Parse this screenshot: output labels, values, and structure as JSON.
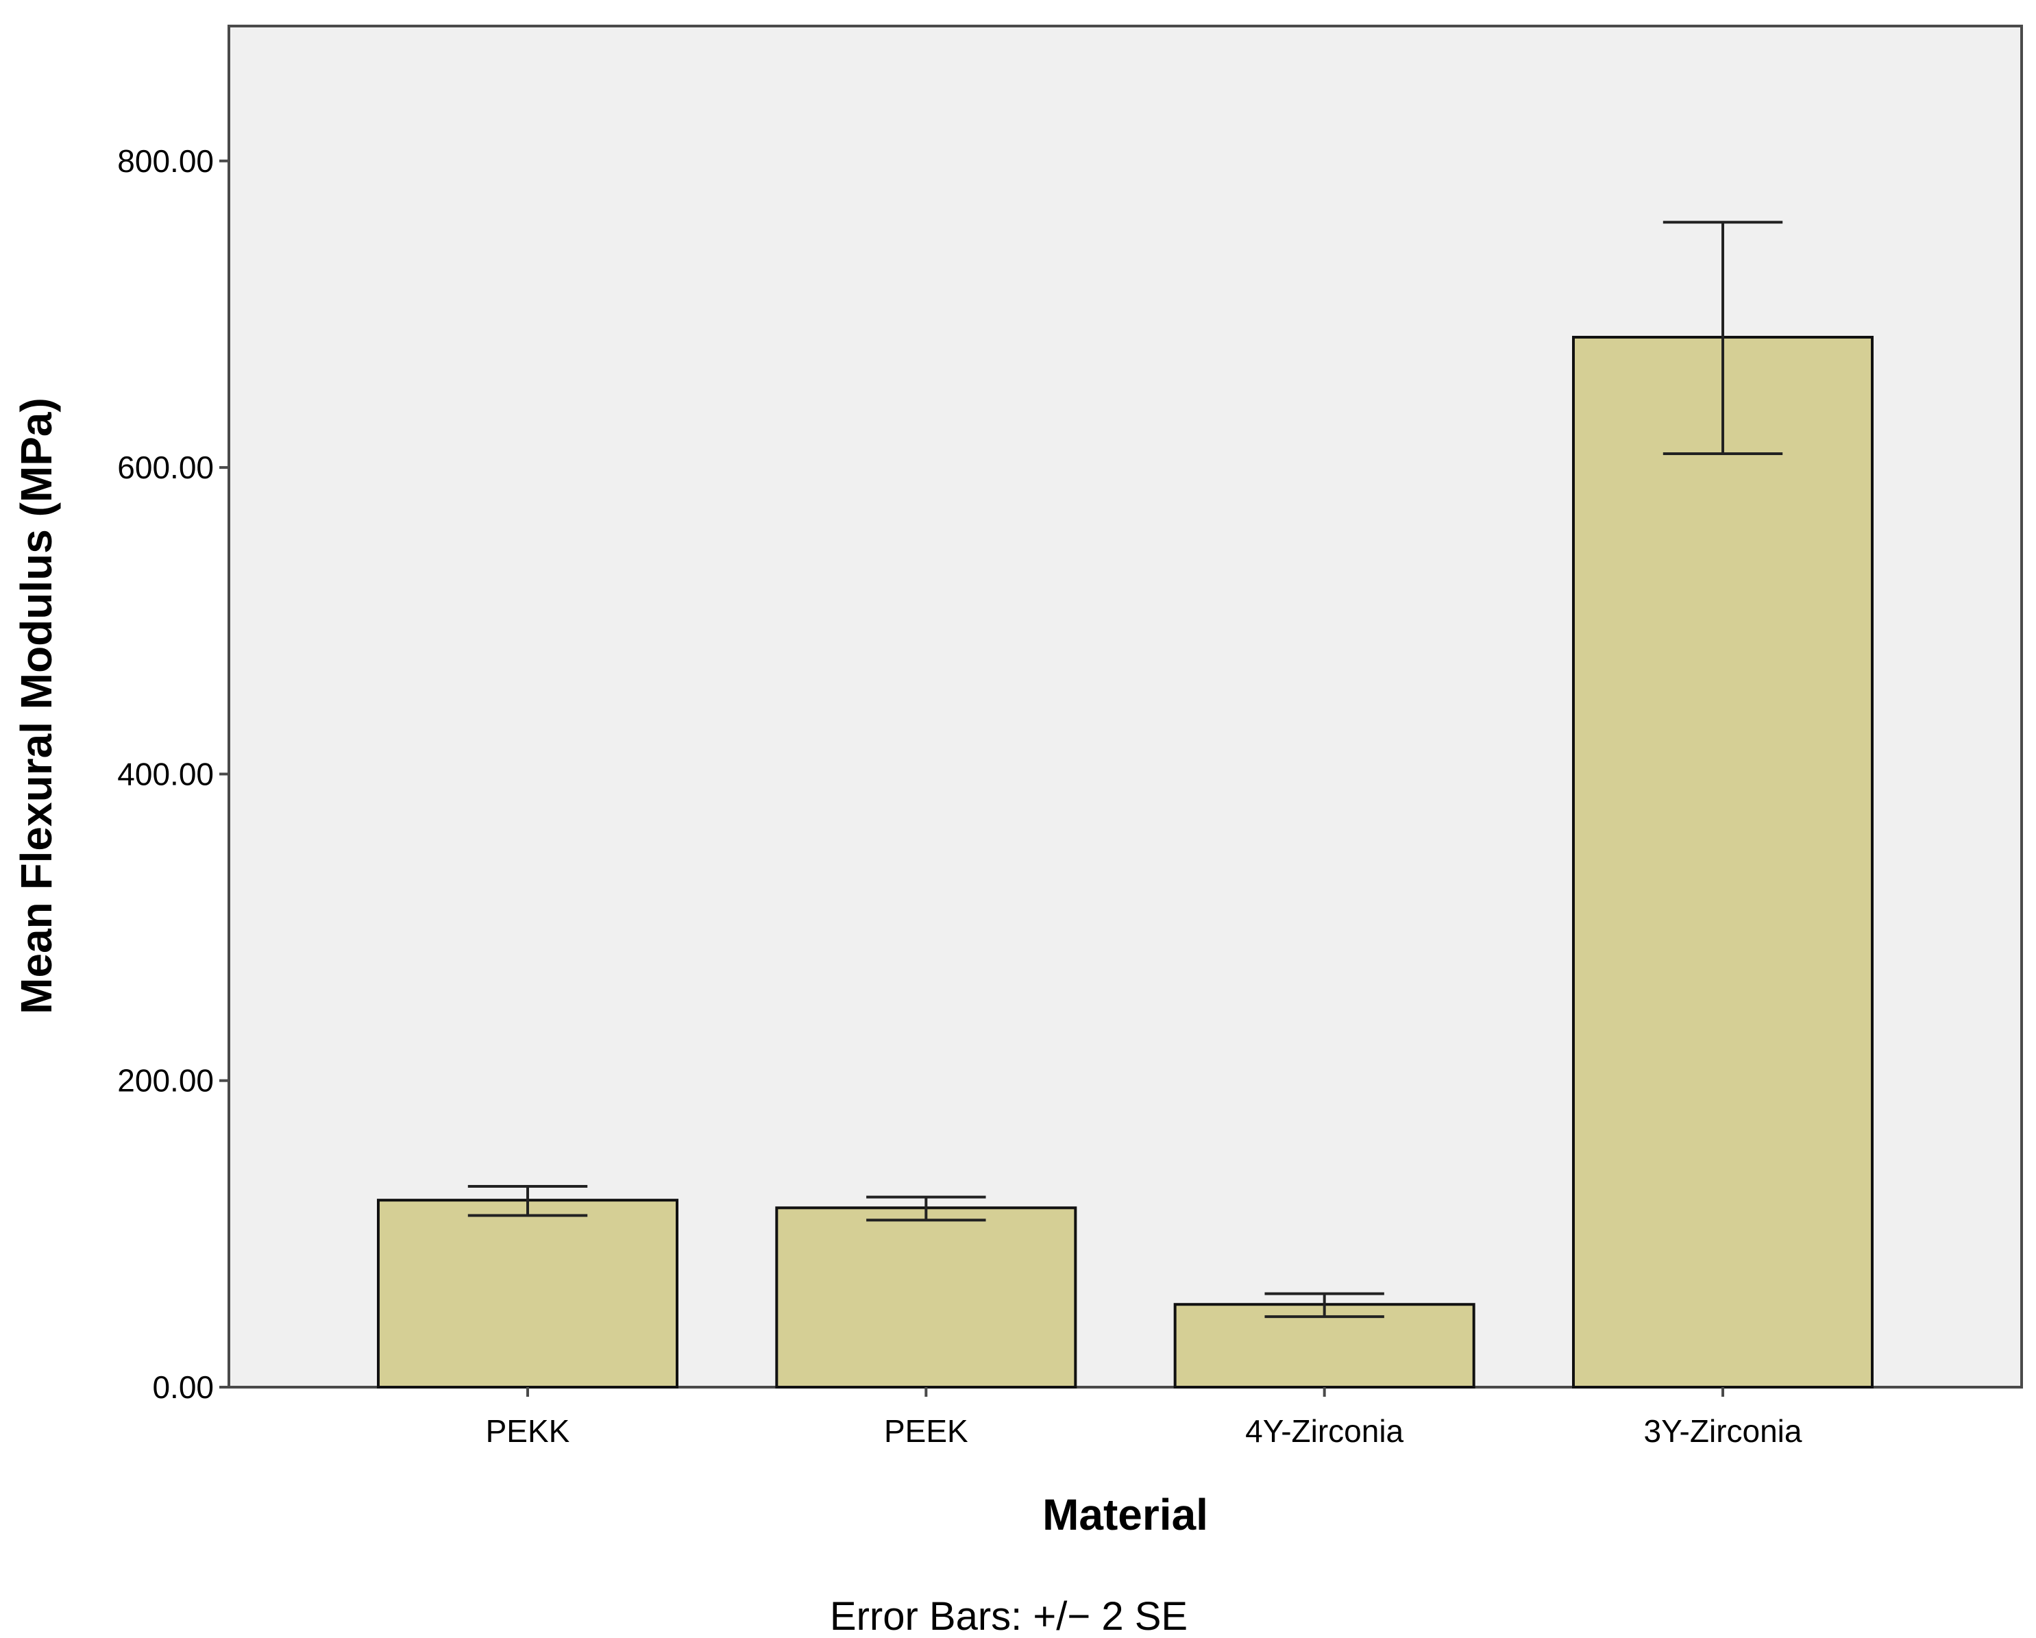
{
  "chart_data": {
    "type": "bar",
    "title": "",
    "xlabel": "Material",
    "ylabel": "Mean Flexural Modulus (MPa)",
    "footnote": "Error Bars: +/− 2 SE",
    "categories": [
      "PEKK",
      "PEEK",
      "4Y-Zirconia",
      "3Y-Zirconia"
    ],
    "values": [
      122,
      117,
      54,
      685
    ],
    "error_low": [
      112,
      109,
      46,
      609
    ],
    "error_high": [
      131,
      124,
      61,
      760
    ],
    "ylim": [
      0,
      888
    ],
    "yticks": [
      0,
      200,
      400,
      600,
      800
    ],
    "ytick_labels": [
      "0.00",
      "200.00",
      "400.00",
      "600.00",
      "800.00"
    ],
    "grid": false,
    "legend": "none",
    "colors": {
      "bar_fill": "#D5CF95",
      "bar_stroke": "#111111",
      "plot_background": "#F0F0F0",
      "frame": "#4A4A4A"
    }
  }
}
